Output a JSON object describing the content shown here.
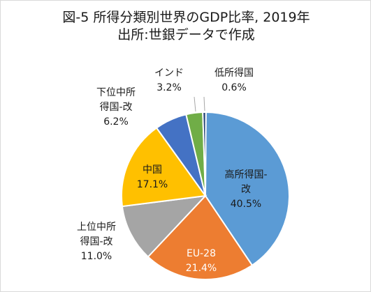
{
  "chart_data": {
    "type": "pie",
    "title": "図-5 所得分類別世界のGDP比率, 2019年",
    "subtitle": "出所:世銀データで作成",
    "slices": [
      {
        "label_lines": [
          "高所得国-",
          "改"
        ],
        "value_text": "40.5%",
        "value": 40.5,
        "color": "#5b9bd5",
        "label_color": "#1a1a1a"
      },
      {
        "label_lines": [
          "EU-28"
        ],
        "value_text": "21.4%",
        "value": 21.4,
        "color": "#ed7d31",
        "label_color": "#ffffff"
      },
      {
        "label_lines": [
          "上位中所",
          "得国-改"
        ],
        "value_text": "11.0%",
        "value": 11.0,
        "color": "#a5a5a5",
        "label_color": "#1a1a1a"
      },
      {
        "label_lines": [
          "中国"
        ],
        "value_text": "17.1%",
        "value": 17.1,
        "color": "#ffc000",
        "label_color": "#1a1a1a"
      },
      {
        "label_lines": [
          "下位中所",
          "得国-改"
        ],
        "value_text": "6.2%",
        "value": 6.2,
        "color": "#4472c4",
        "label_color": "#1a1a1a"
      },
      {
        "label_lines": [
          "インド"
        ],
        "value_text": "3.2%",
        "value": 3.2,
        "color": "#70ad47",
        "label_color": "#1a1a1a"
      },
      {
        "label_lines": [
          "低所得国"
        ],
        "value_text": "0.6%",
        "value": 0.6,
        "color": "#264478",
        "label_color": "#1a1a1a"
      }
    ]
  }
}
